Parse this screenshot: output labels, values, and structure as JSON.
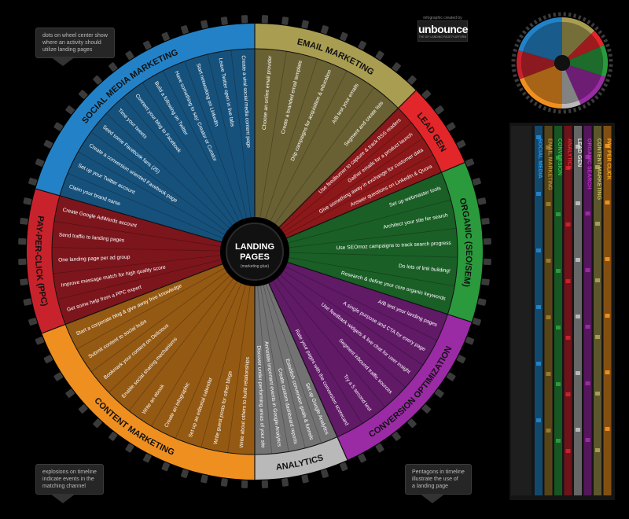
{
  "center": {
    "title1": "LANDING",
    "title2": "PAGES",
    "subtitle": "(marketing glue)"
  },
  "notes": {
    "top_left": [
      "dots on wheel center show",
      "where an activity should",
      "utilize landing pages"
    ],
    "bottom_left": [
      "explosions on timeline",
      "indicate events in the",
      "matching channel"
    ],
    "bottom_right": [
      "Pentagons in timeline",
      "illustrate the use of",
      "a landing page"
    ]
  },
  "logo": {
    "credit": "infographic created by",
    "brand": "unbounce",
    "tagline": "THE DIY LANDING PAGE PLATFORM"
  },
  "colors": {
    "email": "#a99d52",
    "lead": "#e2262a",
    "organic": "#2a9a3d",
    "conversion": "#9b2aa5",
    "analytics": "#b9b9b9",
    "content": "#ef8f1f",
    "ppc": "#c8232d",
    "social": "#2382c7"
  },
  "wheel": [
    {
      "key": "email",
      "title": "EMAIL MARKETING",
      "color": "#a99d52",
      "items": [
        "Choose an online email provider",
        "Create a branded email template",
        "Drip campaigns for acquisition & education",
        "A/B test your emails",
        "Segment and create lists"
      ]
    },
    {
      "key": "lead",
      "title": "LEAD GEN",
      "color": "#e2262a",
      "items": [
        "Use feedburner to capture & track RSS readers",
        "Gather emails for a product launch",
        "Give something away in exchange for customer data",
        "Answer questions on LinkedIn & Quora"
      ]
    },
    {
      "key": "organic",
      "title": "ORGANIC (SEO/SEM)",
      "color": "#2a9a3d",
      "items": [
        "Set up webmaster tools",
        "Architect your site for search",
        "Use SEOmoz campaigns to track search progress",
        "Do lots of link building!",
        "Research & define your core organic keywords"
      ]
    },
    {
      "key": "conversion",
      "title": "CONVERSION OPTIMIZATION",
      "color": "#9b2aa5",
      "items": [
        "A/B test your landing pages",
        "A single purpose and CTA for every page",
        "Use feedback widgets & live chat for user insight",
        "Segment inbound traffic sources",
        "Try a 5 second test",
        "Rate your pages with the conversion scorecard"
      ]
    },
    {
      "key": "analytics",
      "title": "ANALYTICS",
      "color": "#b9b9b9",
      "items": [
        "Set up Google Analytics",
        "Establish conversion goals & funnels",
        "Create custom dashboard reports",
        "Annotate important events in Google Analytics",
        "Discover under-performing areas of your site"
      ]
    },
    {
      "key": "content",
      "title": "CONTENT MARKETING",
      "color": "#ef8f1f",
      "items": [
        "Write about others to build relationships",
        "Write guest posts for other blogs",
        "Set up an editorial calendar",
        "Create an infographic",
        "Write an ebook",
        "Enable social sharing mechanisms",
        "Bookmark your content on Delicious",
        "Submit content to social hubs",
        "Start a corporate blog & give away free knowledge"
      ]
    },
    {
      "key": "ppc",
      "title": "PAY-PER-CLICK (PPC)",
      "color": "#c8232d",
      "items": [
        "Get some help from a PPC expert",
        "Improve message match for high quality score",
        "One landing page per ad group",
        "Send traffic to landing pages",
        "Create Google AdWords account"
      ]
    },
    {
      "key": "social",
      "title": "SOCIAL MEDIA MARKETING",
      "color": "#2382c7",
      "items": [
        "Claim your brand name",
        "Set up your Twitter account",
        "Create a conversion oriented Facebook page",
        "Seed some Facebook fans (25)",
        "Time your tweets",
        "Connect your blog to Facebook",
        "Build a following on Twitter",
        "Have something to say: Creator or Curator",
        "Start networking on LinkedIn",
        "Leave Twitter open in live tabs",
        "Create a viral social media content page"
      ]
    }
  ],
  "timeline": {
    "labels": [
      "PAY PER CLICK",
      "CONTENT MARKETING",
      "ANALYTICS",
      "CONVERSION",
      "ORGANIC SEARCH",
      "LEAD GEN",
      "EMAIL MARKETING",
      "SOCIAL MEDIA"
    ]
  }
}
